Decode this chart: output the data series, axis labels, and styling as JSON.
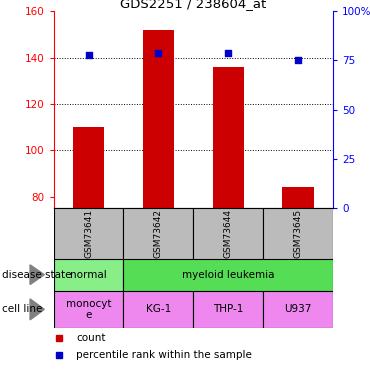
{
  "title": "GDS2251 / 238604_at",
  "samples": [
    "GSM73641",
    "GSM73642",
    "GSM73644",
    "GSM73645"
  ],
  "bar_values": [
    110,
    152,
    136,
    84
  ],
  "percentile_values": [
    78,
    79,
    79,
    75
  ],
  "bar_color": "#cc0000",
  "percentile_color": "#0000cc",
  "ylim_left": [
    75,
    160
  ],
  "ylim_right": [
    0,
    100
  ],
  "yticks_left": [
    80,
    100,
    120,
    140,
    160
  ],
  "yticks_right": [
    0,
    25,
    50,
    75,
    100
  ],
  "yticklabels_right": [
    "0",
    "25",
    "50",
    "75",
    "100%"
  ],
  "grid_lines": [
    100,
    120,
    140
  ],
  "disease_data": [
    {
      "label": "normal",
      "span": 1,
      "color": "#88ee88"
    },
    {
      "label": "myeloid leukemia",
      "span": 3,
      "color": "#55dd55"
    }
  ],
  "cell_data": [
    {
      "label": "monocyt\ne",
      "color": "#ee88ee"
    },
    {
      "label": "KG-1",
      "color": "#ee88ee"
    },
    {
      "label": "THP-1",
      "color": "#ee88ee"
    },
    {
      "label": "U937",
      "color": "#ee88ee"
    }
  ],
  "sample_bg_color": "#bbbbbb",
  "legend_count_color": "#cc0000",
  "legend_pct_color": "#0000cc",
  "bar_bottom": 75
}
